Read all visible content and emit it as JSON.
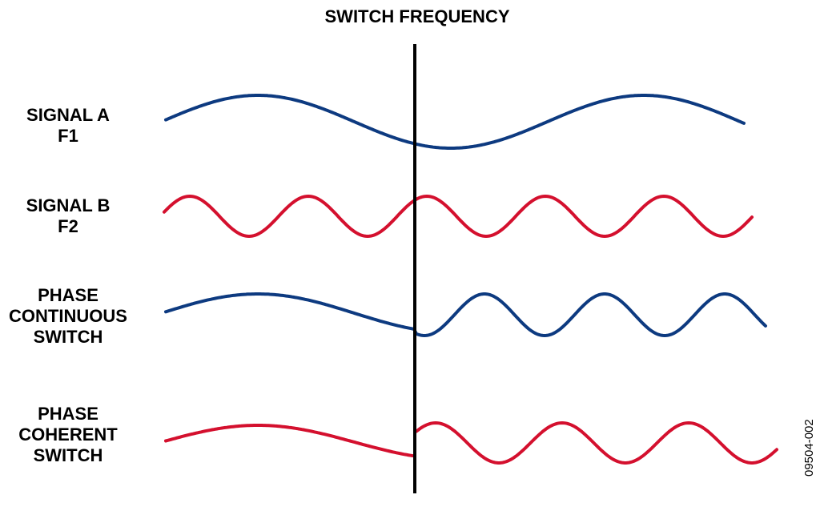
{
  "title": "SWITCH FREQUENCY",
  "rows": [
    {
      "lines": [
        "SIGNAL A",
        "F1"
      ]
    },
    {
      "lines": [
        "SIGNAL B",
        "F2"
      ]
    },
    {
      "lines": [
        "PHASE",
        "CONTINUOUS",
        "SWITCH"
      ]
    },
    {
      "lines": [
        "PHASE",
        "COHERENT",
        "SWITCH"
      ]
    }
  ],
  "figure_id": "09504-002",
  "colors": {
    "blue": "#0d3a80",
    "red": "#d4102e",
    "divider": "#000000"
  }
}
